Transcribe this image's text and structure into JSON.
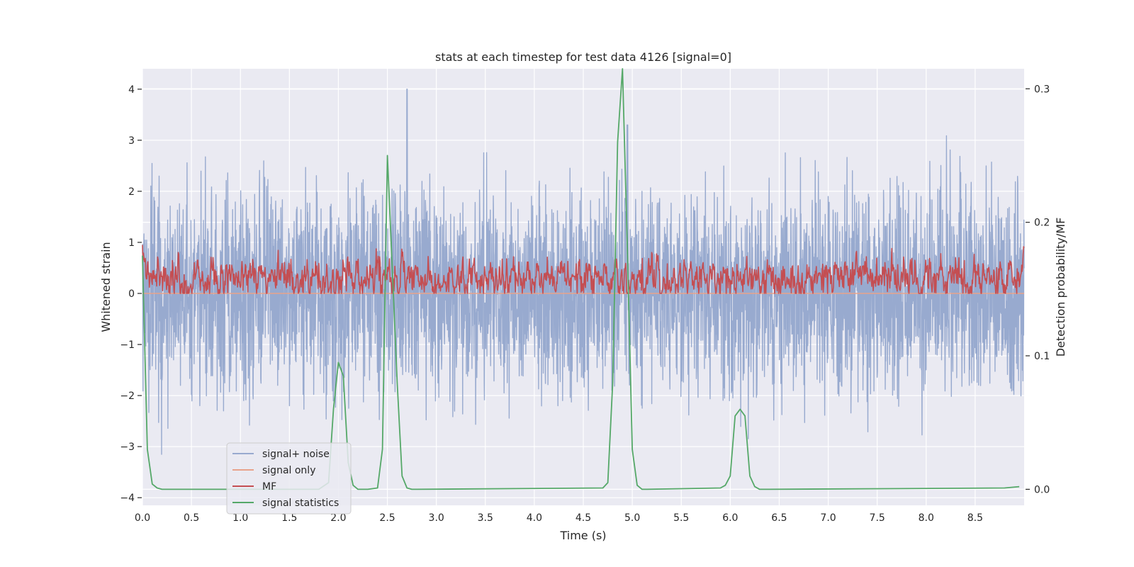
{
  "chart_data": {
    "type": "line",
    "title": "stats at each timestep for test data 4126 [signal=0]",
    "xlabel": "Time (s)",
    "ylabel": "Whitened strain",
    "ylabel_right": "Detection probability/MF",
    "xlim": [
      0.0,
      9.0
    ],
    "ylim": [
      -4.15,
      4.4
    ],
    "ylim_right": [
      -0.012,
      0.315
    ],
    "xticks": [
      0.0,
      0.5,
      1.0,
      1.5,
      2.0,
      2.5,
      3.0,
      3.5,
      4.0,
      4.5,
      5.0,
      5.5,
      6.0,
      6.5,
      7.0,
      7.5,
      8.0,
      8.5
    ],
    "xtick_labels": [
      "0.0",
      "0.5",
      "1.0",
      "1.5",
      "2.0",
      "2.5",
      "3.0",
      "3.5",
      "4.0",
      "4.5",
      "5.0",
      "5.5",
      "6.0",
      "6.5",
      "7.0",
      "7.5",
      "8.0",
      "8.5"
    ],
    "yticks": [
      -4,
      -3,
      -2,
      -1,
      0,
      1,
      2,
      3,
      4
    ],
    "ytick_labels": [
      "−4",
      "−3",
      "−2",
      "−1",
      "0",
      "1",
      "2",
      "3",
      "4"
    ],
    "yticks_right": [
      0.0,
      0.1,
      0.2,
      0.3
    ],
    "ytick_right_labels": [
      "0.0",
      "0.1",
      "0.2",
      "0.3"
    ],
    "grid": true,
    "legend_position": "lower-left",
    "series": [
      {
        "name": "signal+ noise",
        "axis": "left",
        "color": "#98aacf",
        "kind": "noise",
        "approx_range": [
          -3.8,
          4.0
        ],
        "note": "dense noise trace, approx. 4096 samples; peaks near 2.7 s (4.0), 5.0 s (3.3)"
      },
      {
        "name": "signal only",
        "axis": "left",
        "color": "#e8a38b",
        "x": [
          0.0,
          9.0
        ],
        "y": [
          0.0,
          0.0
        ]
      },
      {
        "name": "MF",
        "axis": "left",
        "color": "#c44e52",
        "kind": "noise",
        "approx_range": [
          0.0,
          1.0
        ],
        "note": "dense non-negative trace, typically 0.1–0.6"
      },
      {
        "name": "signal statistics",
        "axis": "right",
        "color": "#55a868",
        "x": [
          0.0,
          0.05,
          0.1,
          0.15,
          0.2,
          0.25,
          0.3,
          1.8,
          1.9,
          1.95,
          2.0,
          2.05,
          2.1,
          2.15,
          2.2,
          2.3,
          2.4,
          2.45,
          2.5,
          2.55,
          2.6,
          2.65,
          2.7,
          2.75,
          2.8,
          4.7,
          4.75,
          4.8,
          4.85,
          4.9,
          4.95,
          5.0,
          5.05,
          5.1,
          5.15,
          5.9,
          5.95,
          6.0,
          6.05,
          6.1,
          6.15,
          6.2,
          6.25,
          6.3,
          6.35,
          6.4,
          8.8,
          8.95
        ],
        "y": [
          0.175,
          0.03,
          0.004,
          0.001,
          0.0,
          0.0,
          0.0,
          0.0,
          0.005,
          0.06,
          0.095,
          0.085,
          0.02,
          0.003,
          0.0,
          0.0,
          0.001,
          0.03,
          0.25,
          0.165,
          0.08,
          0.01,
          0.001,
          0.0,
          0.0,
          0.001,
          0.005,
          0.08,
          0.26,
          0.315,
          0.18,
          0.03,
          0.003,
          0.0,
          0.0,
          0.001,
          0.003,
          0.01,
          0.055,
          0.06,
          0.055,
          0.01,
          0.002,
          0.0,
          0.0,
          0.0,
          0.001,
          0.002
        ]
      }
    ]
  }
}
